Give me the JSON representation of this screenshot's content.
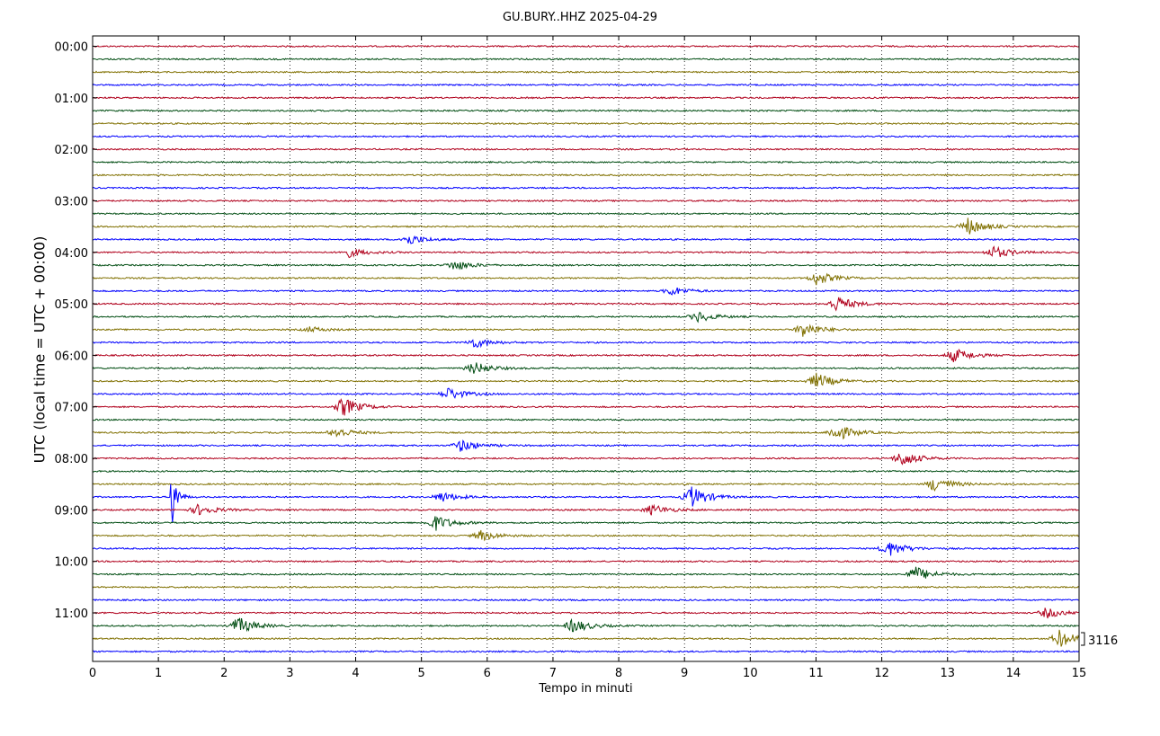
{
  "chart_data": {
    "type": "line",
    "title": "GU.BURY..HHZ 2025-04-29",
    "xlabel": "Tempo in minuti",
    "ylabel": "UTC (local time = UTC + 00:00)",
    "xlim": [
      0,
      15
    ],
    "x_ticks": [
      "0",
      "1",
      "2",
      "3",
      "4",
      "5",
      "6",
      "7",
      "8",
      "9",
      "10",
      "11",
      "12",
      "13",
      "14",
      "15"
    ],
    "y_ticks": [
      "00:00",
      "01:00",
      "02:00",
      "03:00",
      "04:00",
      "05:00",
      "06:00",
      "07:00",
      "08:00",
      "09:00",
      "10:00",
      "11:00"
    ],
    "grid": true,
    "line_minutes": 15,
    "line_count": 48,
    "trace_colors": [
      "#b0001c",
      "#004d12",
      "#807000",
      "#0000ff"
    ],
    "scale_label": "3116",
    "events": [
      {
        "line": 14,
        "minute": 13.3,
        "amp": 10
      },
      {
        "line": 15,
        "minute": 4.8,
        "amp": 6
      },
      {
        "line": 16,
        "minute": 3.9,
        "amp": 5
      },
      {
        "line": 16,
        "minute": 13.7,
        "amp": 7
      },
      {
        "line": 17,
        "minute": 5.5,
        "amp": 6
      },
      {
        "line": 18,
        "minute": 11.0,
        "amp": 8
      },
      {
        "line": 19,
        "minute": 8.8,
        "amp": 5
      },
      {
        "line": 20,
        "minute": 11.3,
        "amp": 9
      },
      {
        "line": 21,
        "minute": 9.2,
        "amp": 6
      },
      {
        "line": 22,
        "minute": 10.8,
        "amp": 9
      },
      {
        "line": 22,
        "minute": 3.3,
        "amp": 3
      },
      {
        "line": 23,
        "minute": 5.8,
        "amp": 6
      },
      {
        "line": 24,
        "minute": 13.1,
        "amp": 8
      },
      {
        "line": 25,
        "minute": 5.8,
        "amp": 7
      },
      {
        "line": 26,
        "minute": 11.0,
        "amp": 9
      },
      {
        "line": 27,
        "minute": 5.4,
        "amp": 7
      },
      {
        "line": 28,
        "minute": 3.8,
        "amp": 11
      },
      {
        "line": 30,
        "minute": 3.7,
        "amp": 6
      },
      {
        "line": 30,
        "minute": 11.3,
        "amp": 10
      },
      {
        "line": 31,
        "minute": 5.6,
        "amp": 7
      },
      {
        "line": 32,
        "minute": 12.3,
        "amp": 9
      },
      {
        "line": 34,
        "minute": 12.8,
        "amp": 9
      },
      {
        "line": 35,
        "minute": 1.2,
        "amp": 40
      },
      {
        "line": 35,
        "minute": 9.1,
        "amp": 12
      },
      {
        "line": 35,
        "minute": 5.3,
        "amp": 6
      },
      {
        "line": 36,
        "minute": 1.6,
        "amp": 6
      },
      {
        "line": 36,
        "minute": 8.5,
        "amp": 6
      },
      {
        "line": 37,
        "minute": 5.2,
        "amp": 9
      },
      {
        "line": 38,
        "minute": 5.9,
        "amp": 6
      },
      {
        "line": 39,
        "minute": 12.1,
        "amp": 9
      },
      {
        "line": 41,
        "minute": 12.5,
        "amp": 9
      },
      {
        "line": 44,
        "minute": 14.5,
        "amp": 6
      },
      {
        "line": 45,
        "minute": 2.2,
        "amp": 10
      },
      {
        "line": 45,
        "minute": 7.3,
        "amp": 8
      },
      {
        "line": 46,
        "minute": 14.7,
        "amp": 10
      }
    ]
  }
}
